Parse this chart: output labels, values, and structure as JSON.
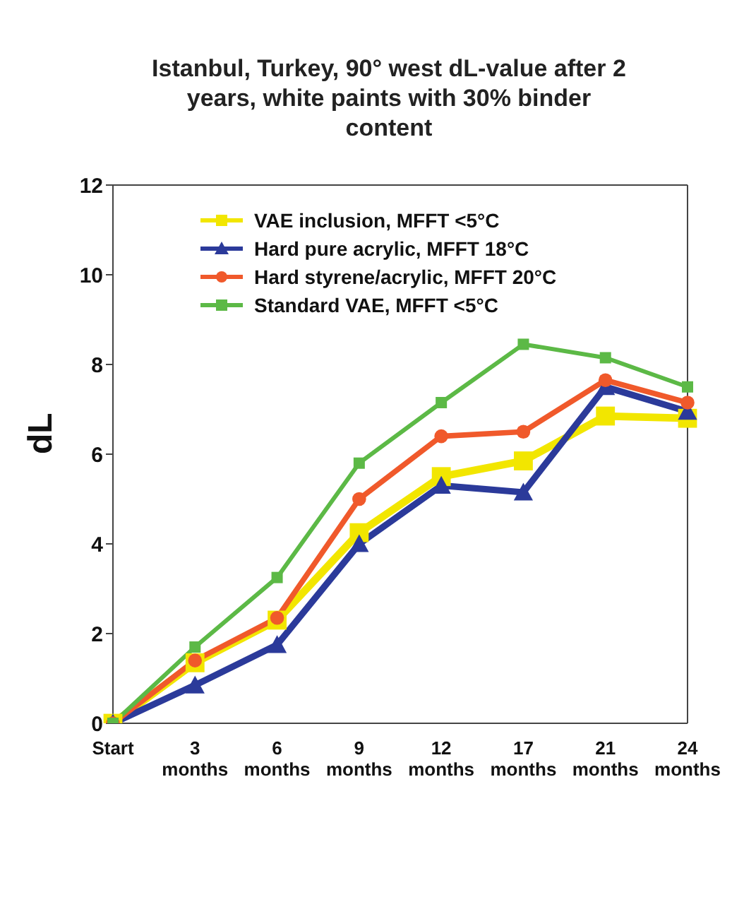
{
  "chart_data": {
    "type": "line",
    "title": "Istanbul, Turkey, 90° west dL-value after 2 years, white paints with 30% binder content",
    "ylabel": "dL",
    "categories": [
      "Start",
      "3 months",
      "6 months",
      "9 months",
      "12 months",
      "17 months",
      "21 months",
      "24 months"
    ],
    "ylim": [
      0,
      12
    ],
    "yticks": [
      0,
      2,
      4,
      6,
      8,
      10,
      12
    ],
    "grid": false,
    "legend": "top left",
    "line_style": "solid",
    "series": [
      {
        "name": "VAE inclusion, MFFT <5°C",
        "color": "#f2e600",
        "marker": "square",
        "values": [
          0,
          1.35,
          2.3,
          4.25,
          5.5,
          5.85,
          6.85,
          6.8
        ]
      },
      {
        "name": "Hard pure acrylic, MFFT 18°C",
        "color": "#2b3a9a",
        "marker": "triangle",
        "values": [
          0,
          0.85,
          1.75,
          4.0,
          5.3,
          5.15,
          7.5,
          6.95
        ]
      },
      {
        "name": "Hard styrene/acrylic, MFFT 20°C",
        "color": "#f0592b",
        "marker": "circle",
        "values": [
          0,
          1.4,
          2.35,
          5.0,
          6.4,
          6.5,
          7.65,
          7.15
        ]
      },
      {
        "name": "Standard VAE, MFFT <5°C",
        "color": "#5cb946",
        "marker": "square",
        "values": [
          0,
          1.7,
          3.25,
          5.8,
          7.15,
          8.45,
          8.15,
          7.5
        ]
      }
    ]
  }
}
